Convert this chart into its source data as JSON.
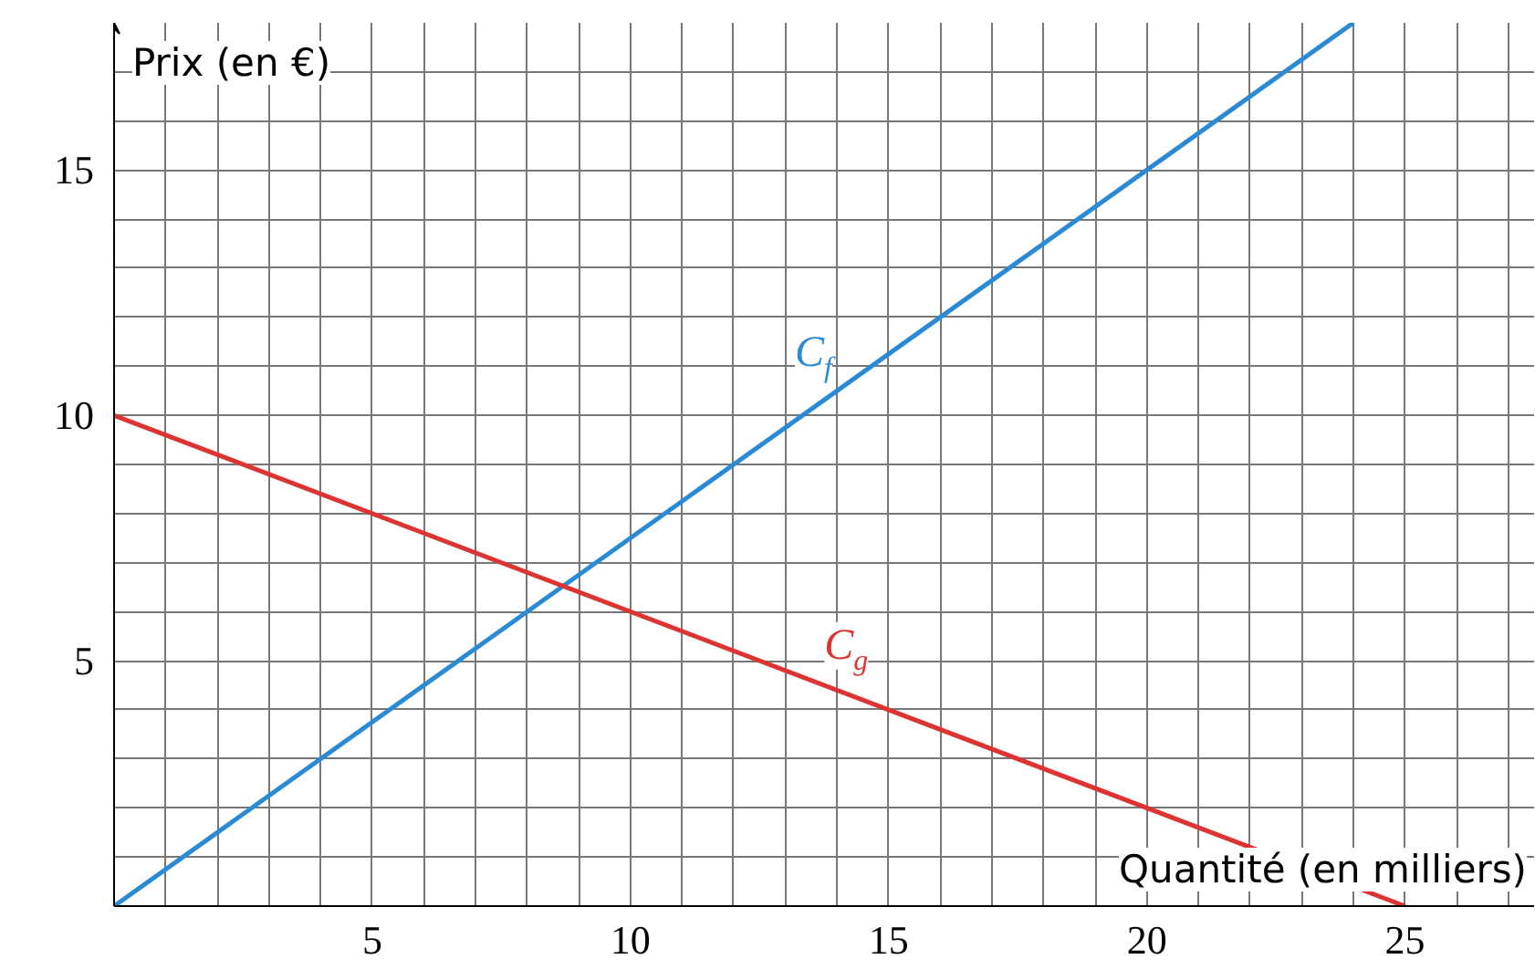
{
  "chart_data": {
    "type": "line",
    "xlabel": "Quantité (en milliers)",
    "ylabel": "Prix (en €)",
    "xlim": [
      0,
      27.5
    ],
    "ylim": [
      0,
      18
    ],
    "xticks": [
      5,
      10,
      15,
      20,
      25
    ],
    "yticks": [
      5,
      10,
      15
    ],
    "grid": true,
    "series": [
      {
        "name": "C$_{f}$",
        "color": "#2a8ad4",
        "x": [
          0,
          24
        ],
        "values": [
          0,
          18
        ]
      },
      {
        "name": "C$_{g}$",
        "color": "#dd3333",
        "x": [
          0,
          25
        ],
        "values": [
          10,
          0
        ]
      }
    ]
  }
}
